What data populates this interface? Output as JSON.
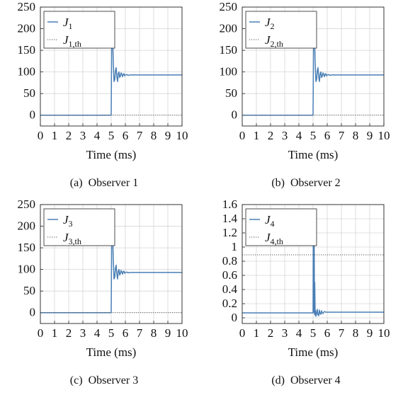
{
  "chart_data": [
    {
      "type": "line",
      "caption_label": "(a)",
      "caption_text": "Observer 1",
      "xlabel": "Time (ms)",
      "ylabel": "",
      "xlim": [
        0,
        10
      ],
      "ylim": [
        -25,
        250
      ],
      "xticks": [
        0,
        1,
        2,
        3,
        4,
        5,
        6,
        7,
        8,
        9,
        10
      ],
      "yticks": [
        0,
        50,
        100,
        150,
        200,
        250
      ],
      "ytick_labels": [
        "0",
        "50",
        "100",
        "150",
        "200",
        "250"
      ],
      "grid": true,
      "legend_position": "top-left",
      "series": [
        {
          "name_main": "J",
          "name_sub": "1",
          "style": "solid",
          "color": "#4a7fb5",
          "x": [
            0,
            4.98,
            5.0,
            5.05,
            5.1,
            5.15,
            5.2,
            5.25,
            5.3,
            5.35,
            5.4,
            5.45,
            5.5,
            5.55,
            5.6,
            5.65,
            5.7,
            5.75,
            5.8,
            5.85,
            5.9,
            5.95,
            6.0,
            6.1,
            6.2,
            6.3,
            6.4,
            6.5,
            7.0,
            10
          ],
          "y": [
            0,
            0,
            0,
            238,
            185,
            120,
            78,
            82,
            103,
            110,
            88,
            78,
            96,
            100,
            87,
            91,
            98,
            94,
            89,
            95,
            96,
            91,
            93,
            94,
            92,
            93,
            93,
            93,
            93,
            93
          ]
        },
        {
          "name_main": "J",
          "name_sub": "1,th",
          "style": "dotted",
          "color": "#555555",
          "x": [
            0,
            10
          ],
          "y": [
            0,
            0
          ]
        }
      ]
    },
    {
      "type": "line",
      "caption_label": "(b)",
      "caption_text": "Observer 2",
      "xlabel": "Time (ms)",
      "ylabel": "",
      "xlim": [
        0,
        10
      ],
      "ylim": [
        -25,
        250
      ],
      "xticks": [
        0,
        1,
        2,
        3,
        4,
        5,
        6,
        7,
        8,
        9,
        10
      ],
      "yticks": [
        0,
        50,
        100,
        150,
        200,
        250
      ],
      "ytick_labels": [
        "0",
        "50",
        "100",
        "150",
        "200",
        "250"
      ],
      "grid": true,
      "legend_position": "top-left",
      "series": [
        {
          "name_main": "J",
          "name_sub": "2",
          "style": "solid",
          "color": "#4a7fb5",
          "x": [
            0,
            4.98,
            5.0,
            5.05,
            5.1,
            5.15,
            5.2,
            5.25,
            5.3,
            5.35,
            5.4,
            5.45,
            5.5,
            5.55,
            5.6,
            5.65,
            5.7,
            5.75,
            5.8,
            5.85,
            5.9,
            5.95,
            6.0,
            6.1,
            6.2,
            6.3,
            6.4,
            6.5,
            7.0,
            10
          ],
          "y": [
            0,
            0,
            0,
            238,
            185,
            120,
            78,
            82,
            103,
            110,
            88,
            78,
            96,
            100,
            87,
            91,
            98,
            94,
            89,
            95,
            96,
            91,
            93,
            94,
            92,
            93,
            93,
            93,
            93,
            93
          ]
        },
        {
          "name_main": "J",
          "name_sub": "2,th",
          "style": "dotted",
          "color": "#555555",
          "x": [
            0,
            10
          ],
          "y": [
            0,
            0
          ]
        }
      ]
    },
    {
      "type": "line",
      "caption_label": "(c)",
      "caption_text": "Observer 3",
      "xlabel": "Time (ms)",
      "ylabel": "",
      "xlim": [
        0,
        10
      ],
      "ylim": [
        -25,
        250
      ],
      "xticks": [
        0,
        1,
        2,
        3,
        4,
        5,
        6,
        7,
        8,
        9,
        10
      ],
      "yticks": [
        0,
        50,
        100,
        150,
        200,
        250
      ],
      "ytick_labels": [
        "0",
        "50",
        "100",
        "150",
        "200",
        "250"
      ],
      "grid": true,
      "legend_position": "top-left",
      "series": [
        {
          "name_main": "J",
          "name_sub": "3",
          "style": "solid",
          "color": "#4a7fb5",
          "x": [
            0,
            4.98,
            5.0,
            5.05,
            5.1,
            5.15,
            5.2,
            5.25,
            5.3,
            5.35,
            5.4,
            5.45,
            5.5,
            5.55,
            5.6,
            5.65,
            5.7,
            5.75,
            5.8,
            5.85,
            5.9,
            5.95,
            6.0,
            6.1,
            6.2,
            6.3,
            6.4,
            6.5,
            7.0,
            10
          ],
          "y": [
            0,
            0,
            0,
            238,
            185,
            120,
            78,
            82,
            103,
            110,
            88,
            78,
            96,
            100,
            87,
            91,
            98,
            94,
            89,
            95,
            96,
            91,
            93,
            94,
            92,
            93,
            93,
            93,
            93,
            93
          ]
        },
        {
          "name_main": "J",
          "name_sub": "3,th",
          "style": "dotted",
          "color": "#555555",
          "x": [
            0,
            10
          ],
          "y": [
            0,
            0
          ]
        }
      ]
    },
    {
      "type": "line",
      "caption_label": "(d)",
      "caption_text": "Observer 4",
      "xlabel": "Time (ms)",
      "ylabel": "",
      "xlim": [
        0,
        10
      ],
      "ylim": [
        -0.08,
        1.6
      ],
      "xticks": [
        0,
        1,
        2,
        3,
        4,
        5,
        6,
        7,
        8,
        9,
        10
      ],
      "yticks": [
        0,
        0.2,
        0.4,
        0.6,
        0.8,
        1,
        1.2,
        1.4,
        1.6
      ],
      "ytick_labels": [
        "0",
        "0.2",
        "0.4",
        "0.6",
        "0.8",
        "1",
        "1.2",
        "1.4",
        "1.6"
      ],
      "grid": true,
      "legend_position": "top-left",
      "series": [
        {
          "name_main": "J",
          "name_sub": "4",
          "style": "solid",
          "color": "#4a7fb5",
          "x": [
            0,
            4.95,
            5.0,
            5.02,
            5.05,
            5.08,
            5.1,
            5.12,
            5.15,
            5.18,
            5.2,
            5.25,
            5.3,
            5.35,
            5.4,
            5.45,
            5.5,
            5.55,
            5.6,
            5.65,
            5.7,
            5.8,
            5.9,
            6.0,
            6.2,
            6.5,
            10
          ],
          "y": [
            0.07,
            0.07,
            0.07,
            1.48,
            0.08,
            1.1,
            0.05,
            0.5,
            0.04,
            0.1,
            0.02,
            0.06,
            0.12,
            0.04,
            0.03,
            0.11,
            0.06,
            0.05,
            0.1,
            0.07,
            0.06,
            0.09,
            0.08,
            0.08,
            0.08,
            0.08,
            0.08
          ]
        },
        {
          "name_main": "J",
          "name_sub": "4,th",
          "style": "dotted",
          "color": "#555555",
          "x": [
            0,
            10
          ],
          "y": [
            0.89,
            0.89
          ]
        }
      ]
    }
  ]
}
